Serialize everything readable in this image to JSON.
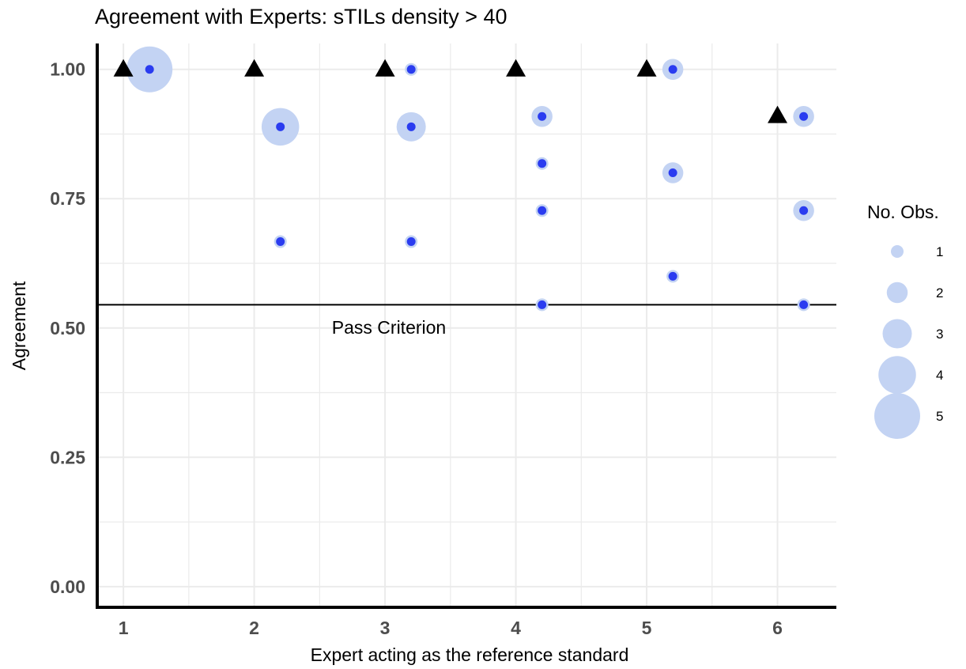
{
  "chart_data": {
    "type": "scatter",
    "title": "Agreement with Experts: sTILs density > 40",
    "xlabel": "Expert acting as the reference standard",
    "ylabel": "Agreement",
    "xlim": [
      0.8,
      6.45
    ],
    "ylim": [
      -0.04,
      1.05
    ],
    "x_ticks": [
      1,
      2,
      3,
      4,
      5,
      6
    ],
    "x_tick_labels": [
      "1",
      "2",
      "3",
      "4",
      "5",
      "6"
    ],
    "y_ticks": [
      0,
      0.25,
      0.5,
      0.75,
      1
    ],
    "y_tick_labels": [
      "0.00",
      "0.25",
      "0.50",
      "0.75",
      "1.00"
    ],
    "grid": true,
    "reference_line": {
      "y": 0.545,
      "label": "Pass Criterion"
    },
    "colors": {
      "bubble": "#c3d3f3",
      "point": "#2a3cf0",
      "triangle": "#000000",
      "grid": "#ebebeb"
    },
    "triangles": [
      {
        "x": 1,
        "y": 1.0
      },
      {
        "x": 2,
        "y": 1.0
      },
      {
        "x": 3,
        "y": 1.0
      },
      {
        "x": 4,
        "y": 1.0
      },
      {
        "x": 5,
        "y": 1.0
      },
      {
        "x": 6,
        "y": 0.91
      }
    ],
    "points": [
      {
        "x": 1.2,
        "y": 1.0,
        "n": 5
      },
      {
        "x": 2.2,
        "y": 0.889,
        "n": 4
      },
      {
        "x": 2.2,
        "y": 0.667,
        "n": 1
      },
      {
        "x": 3.2,
        "y": 1.0,
        "n": 1
      },
      {
        "x": 3.2,
        "y": 0.889,
        "n": 3
      },
      {
        "x": 3.2,
        "y": 0.667,
        "n": 1
      },
      {
        "x": 4.2,
        "y": 0.909,
        "n": 2
      },
      {
        "x": 4.2,
        "y": 0.818,
        "n": 1
      },
      {
        "x": 4.2,
        "y": 0.727,
        "n": 1
      },
      {
        "x": 4.2,
        "y": 0.545,
        "n": 1
      },
      {
        "x": 5.2,
        "y": 1.0,
        "n": 2
      },
      {
        "x": 5.2,
        "y": 0.8,
        "n": 2
      },
      {
        "x": 5.2,
        "y": 0.6,
        "n": 1
      },
      {
        "x": 6.2,
        "y": 0.909,
        "n": 2
      },
      {
        "x": 6.2,
        "y": 0.727,
        "n": 2
      },
      {
        "x": 6.2,
        "y": 0.545,
        "n": 1
      }
    ],
    "legend": {
      "title": "No. Obs.",
      "placement": "right",
      "entries": [
        {
          "label": "1",
          "n": 1
        },
        {
          "label": "2",
          "n": 2
        },
        {
          "label": "3",
          "n": 3
        },
        {
          "label": "4",
          "n": 4
        },
        {
          "label": "5",
          "n": 5
        }
      ]
    }
  }
}
